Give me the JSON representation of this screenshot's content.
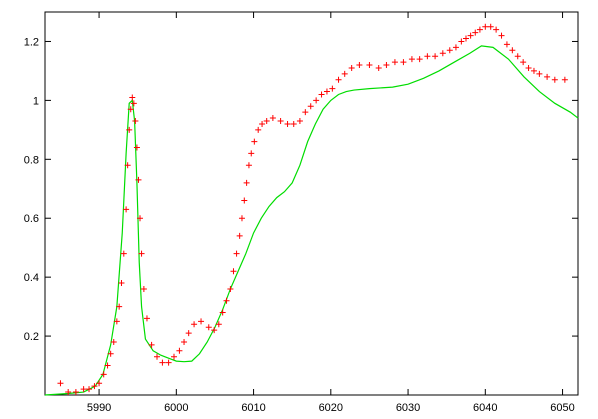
{
  "chart_data": {
    "type": "line",
    "title": "",
    "xlabel": "",
    "ylabel": "",
    "xlim": [
      5983,
      6052
    ],
    "ylim": [
      0,
      1.3
    ],
    "grid": false,
    "legend": "none",
    "x_ticks": [
      5990,
      6000,
      6010,
      6020,
      6030,
      6040,
      6050
    ],
    "x_tick_labels": [
      "5990",
      "6000",
      "6010",
      "6020",
      "6030",
      "6040",
      "6050"
    ],
    "y_ticks": [
      0.2,
      0.4,
      0.6,
      0.8,
      1.0,
      1.2
    ],
    "y_tick_labels": [
      "0.2",
      "0.4",
      "0.6",
      "0.8",
      "1",
      "1.2"
    ],
    "series": [
      {
        "style": "line",
        "color": "#00dd00",
        "x": [
          5983,
          5986,
          5988,
          5989.5,
          5990.5,
          5991.5,
          5992.3,
          5993,
          5993.5,
          5993.9,
          5994.3,
          5994.6,
          5994.9,
          5995.2,
          5995.5,
          5996,
          5997,
          5998,
          5999,
          6000,
          6001,
          6002,
          6003,
          6004,
          6005,
          6006,
          6007,
          6008,
          6009,
          6010,
          6011,
          6012,
          6013,
          6014,
          6015,
          6016,
          6017,
          6018,
          6019,
          6020,
          6021,
          6022,
          6023,
          6025,
          6028,
          6030,
          6032,
          6034,
          6036,
          6038,
          6039.5,
          6041,
          6043,
          6045,
          6047,
          6049,
          6051,
          6052
        ],
        "y": [
          0.0,
          0.005,
          0.01,
          0.03,
          0.07,
          0.17,
          0.3,
          0.55,
          0.82,
          0.99,
          1.0,
          0.93,
          0.72,
          0.45,
          0.3,
          0.19,
          0.15,
          0.135,
          0.125,
          0.115,
          0.113,
          0.115,
          0.14,
          0.18,
          0.23,
          0.29,
          0.36,
          0.42,
          0.48,
          0.55,
          0.6,
          0.64,
          0.67,
          0.69,
          0.72,
          0.78,
          0.86,
          0.92,
          0.97,
          1.0,
          1.02,
          1.03,
          1.035,
          1.04,
          1.045,
          1.055,
          1.075,
          1.1,
          1.13,
          1.16,
          1.185,
          1.18,
          1.14,
          1.08,
          1.03,
          0.99,
          0.96,
          0.94
        ]
      },
      {
        "style": "points",
        "marker": "plus",
        "color": "#ff0000",
        "x": [
          5985,
          5986,
          5987,
          5988,
          5988.7,
          5989.4,
          5990,
          5990.6,
          5991.1,
          5991.5,
          5991.9,
          5992.3,
          5992.6,
          5992.9,
          5993.2,
          5993.5,
          5993.7,
          5993.9,
          5994.1,
          5994.3,
          5994.5,
          5994.7,
          5994.9,
          5995.1,
          5995.3,
          5995.5,
          5995.8,
          5996.2,
          5996.8,
          5997.5,
          5998.2,
          5999,
          5999.7,
          6000.4,
          6001,
          6001.6,
          6002.3,
          6003.2,
          6004.2,
          6004.9,
          6005.5,
          6006,
          6006.5,
          6007,
          6007.4,
          6007.8,
          6008.2,
          6008.5,
          6008.8,
          6009.1,
          6009.4,
          6009.7,
          6010.1,
          6010.6,
          6011.1,
          6011.7,
          6012.5,
          6013.5,
          6014.4,
          6015.2,
          6016,
          6016.7,
          6017.4,
          6018.1,
          6018.8,
          6019.5,
          6020.2,
          6021,
          6021.8,
          6022.7,
          6023.7,
          6025,
          6026.2,
          6027.2,
          6028.3,
          6029.4,
          6030.5,
          6031.5,
          6032.5,
          6033.5,
          6034.5,
          6035.4,
          6036.2,
          6036.9,
          6037.5,
          6038.1,
          6038.7,
          6039.3,
          6040,
          6040.7,
          6041.4,
          6042.1,
          6042.8,
          6043.5,
          6044.2,
          6044.9,
          6045.6,
          6046.3,
          6047,
          6048,
          6049,
          6050.3
        ],
        "y": [
          0.04,
          0.01,
          0.01,
          0.02,
          0.02,
          0.03,
          0.04,
          0.07,
          0.1,
          0.14,
          0.18,
          0.25,
          0.3,
          0.38,
          0.48,
          0.63,
          0.78,
          0.9,
          0.97,
          1.01,
          0.99,
          0.93,
          0.84,
          0.73,
          0.6,
          0.48,
          0.36,
          0.26,
          0.17,
          0.13,
          0.11,
          0.11,
          0.13,
          0.15,
          0.18,
          0.21,
          0.24,
          0.25,
          0.23,
          0.22,
          0.24,
          0.28,
          0.32,
          0.36,
          0.42,
          0.48,
          0.54,
          0.6,
          0.66,
          0.72,
          0.78,
          0.82,
          0.86,
          0.9,
          0.92,
          0.93,
          0.94,
          0.93,
          0.92,
          0.92,
          0.93,
          0.96,
          0.98,
          1.0,
          1.02,
          1.03,
          1.04,
          1.07,
          1.09,
          1.11,
          1.12,
          1.12,
          1.11,
          1.12,
          1.13,
          1.13,
          1.14,
          1.14,
          1.15,
          1.15,
          1.16,
          1.17,
          1.18,
          1.2,
          1.21,
          1.22,
          1.23,
          1.24,
          1.25,
          1.25,
          1.24,
          1.22,
          1.19,
          1.17,
          1.15,
          1.13,
          1.11,
          1.1,
          1.09,
          1.08,
          1.07,
          1.07
        ]
      }
    ]
  }
}
